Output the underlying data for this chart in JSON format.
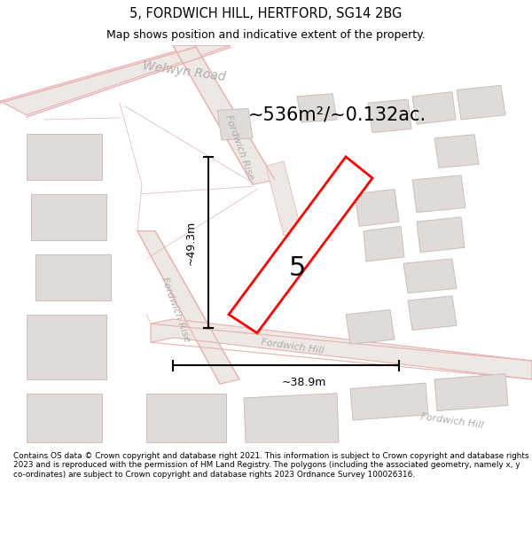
{
  "title": "5, FORDWICH HILL, HERTFORD, SG14 2BG",
  "subtitle": "Map shows position and indicative extent of the property.",
  "area_text": "~536m²/~0.132ac.",
  "dim_height": "~49.3m",
  "dim_width": "~38.9m",
  "property_number": "5",
  "footer": "Contains OS data © Crown copyright and database right 2021. This information is subject to Crown copyright and database rights 2023 and is reproduced with the permission of HM Land Registry. The polygons (including the associated geometry, namely x, y co-ordinates) are subject to Crown copyright and database rights 2023 Ordnance Survey 100026316.",
  "map_bg": "#f5f2ef",
  "road_stroke": "#e8b0ac",
  "road_fill": "#ede8e4",
  "bld_fill": "#e0dbd8",
  "bld_edge": "#c8c0bc",
  "property_outline": "#ff0000",
  "property_fill": "#ffffff",
  "road_label_color": "#b8aeaa",
  "dim_color": "#1a1a1a",
  "title_color": "#000000",
  "footer_color": "#000000",
  "welwyn_road_label": "Welwyn Road",
  "fordwich_rise_label": "Fordwich Rise",
  "fordwich_hill_label": "Fordwich Hill"
}
